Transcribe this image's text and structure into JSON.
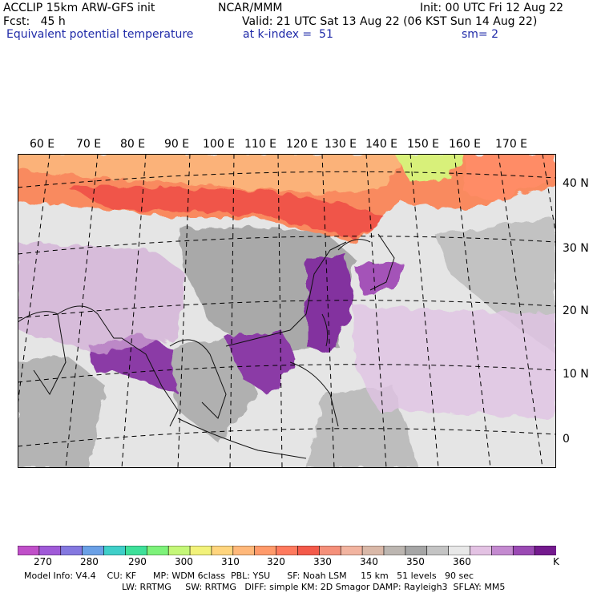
{
  "header": {
    "model": "ACCLIP 15km ARW-GFS init",
    "org": "NCAR/MMM",
    "init": "Init: 00 UTC Fri 12 Aug 22",
    "fcst": "Fcst:   45 h",
    "valid": "Valid: 21 UTC Sat 13 Aug 22 (06 KST Sun 14 Aug 22)",
    "field": "Equivalent potential temperature",
    "level": "at k-index =  51",
    "smooth": "sm= 2"
  },
  "map": {
    "lon_labels": [
      "60 E",
      "70 E",
      "80 E",
      "90 E",
      "100 E",
      "110 E",
      "120 E",
      "130 E",
      "140 E",
      "150 E",
      "160 E",
      "170 E"
    ],
    "lat_labels": [
      "40 N",
      "30 N",
      "20 N",
      "10 N",
      "0"
    ]
  },
  "colorbar": {
    "unit": "K",
    "labels": [
      "270",
      "280",
      "290",
      "300",
      "310",
      "320",
      "330",
      "340",
      "350",
      "360"
    ],
    "colors": [
      "#c04fc9",
      "#a05ad8",
      "#8478e0",
      "#6aa0e6",
      "#3fcfc9",
      "#3ee09a",
      "#7df27a",
      "#c4f778",
      "#f2f27a",
      "#ffd57e",
      "#ffb87a",
      "#ff9a6a",
      "#ff7a5e",
      "#f45a4a",
      "#f5907a",
      "#f2b4a0",
      "#d9b8a8",
      "#bcb6b1",
      "#a6a6a6",
      "#c4c4c4",
      "#e8e8e8",
      "#e3c2e3",
      "#c48ad0",
      "#9b4ab4",
      "#741a8e"
    ]
  },
  "footer": {
    "line1": "Model Info: V4.4    CU: KF      MP: WDM 6class  PBL: YSU      SF: Noah LSM     15 km   51 levels   90 sec",
    "line2": "LW: RRTMG     SW: RRTMG   DIFF: simple KM: 2D Smagor DAMP: Rayleigh3  SFLAY: MM5"
  }
}
